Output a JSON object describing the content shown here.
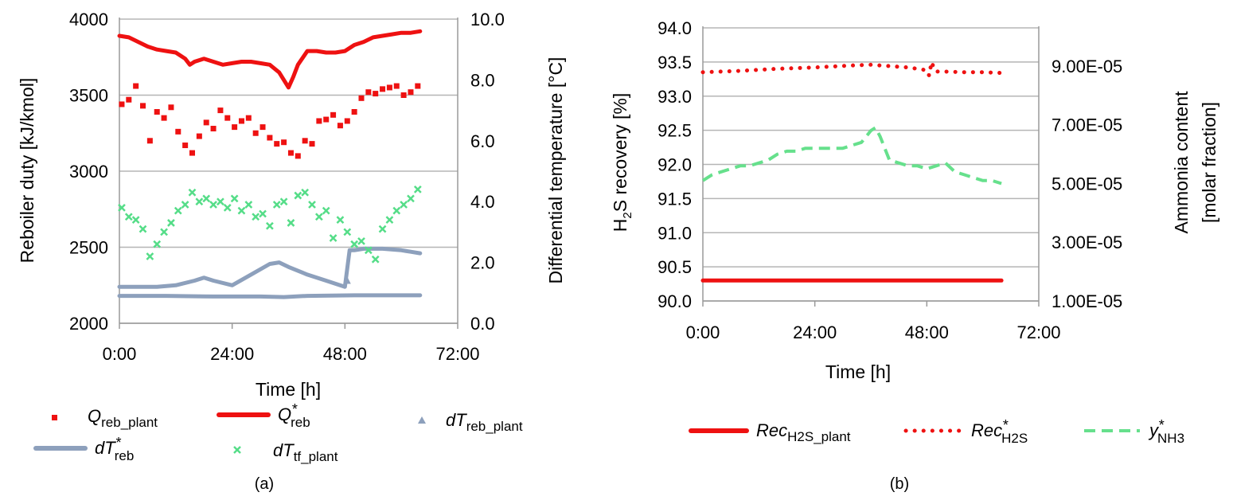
{
  "chart_data": [
    {
      "panel_label": "(a)",
      "type": "scatter",
      "xlabel": "Time [h]",
      "ylabel_left": "Reboiler duty [kJ/kmol]",
      "ylabel_right": "Differential temperature [°C]",
      "x_ticks": [
        "0:00",
        "24:00",
        "48:00",
        "72:00"
      ],
      "xlim_hours": [
        0,
        72
      ],
      "ylim_left": [
        2000,
        4000
      ],
      "y_ticks_left": [
        "2000",
        "2500",
        "3000",
        "3500",
        "4000"
      ],
      "ylim_right": [
        0,
        10
      ],
      "y_ticks_right": [
        "0.0",
        "2.0",
        "4.0",
        "6.0",
        "8.0",
        "10.0"
      ],
      "grid": "horizontal",
      "legend_position": "bottom",
      "series": [
        {
          "name_main": "Q",
          "name_sub": "reb_plant",
          "star": false,
          "axis": "left",
          "style": "square-markers",
          "color": "#ee1111",
          "x_hours": [
            0.5,
            2,
            3.5,
            5,
            6.5,
            8,
            9.5,
            11,
            12.5,
            14,
            15.5,
            17,
            18.5,
            20,
            21.5,
            23,
            24.5,
            26,
            27.5,
            29,
            30.5,
            32,
            33.5,
            35,
            36.5,
            38,
            39.5,
            41,
            42.5,
            44,
            45.5,
            47,
            48.5,
            50,
            51.5,
            53,
            54.5,
            56,
            57.5,
            59,
            60.5,
            62,
            63.5
          ],
          "values": [
            3440,
            3470,
            3560,
            3430,
            3200,
            3390,
            3350,
            3420,
            3260,
            3170,
            3120,
            3230,
            3320,
            3280,
            3400,
            3350,
            3290,
            3330,
            3350,
            3250,
            3290,
            3220,
            3180,
            3190,
            3120,
            3100,
            3200,
            3180,
            3330,
            3340,
            3370,
            3300,
            3330,
            3390,
            3480,
            3520,
            3510,
            3540,
            3550,
            3560,
            3500,
            3520,
            3560
          ]
        },
        {
          "name_main": "Q",
          "name_sub": "reb",
          "star": true,
          "axis": "left",
          "style": "thick-line",
          "color": "#ee1111",
          "x_hours": [
            0,
            2,
            4,
            6,
            8,
            10,
            12,
            14,
            15,
            16,
            18,
            20,
            22,
            24,
            26,
            28,
            30,
            32,
            34,
            35,
            36,
            37,
            38,
            40,
            42,
            44,
            46,
            48,
            50,
            52,
            54,
            56,
            58,
            60,
            62,
            64
          ],
          "values": [
            3890,
            3880,
            3850,
            3820,
            3800,
            3790,
            3780,
            3740,
            3700,
            3720,
            3740,
            3720,
            3700,
            3710,
            3720,
            3720,
            3710,
            3700,
            3650,
            3600,
            3550,
            3620,
            3700,
            3790,
            3790,
            3780,
            3780,
            3790,
            3830,
            3850,
            3880,
            3890,
            3900,
            3910,
            3910,
            3920
          ]
        },
        {
          "name_main": "dT",
          "name_sub": "reb_plant",
          "star": false,
          "axis": "right",
          "style": "triangle-markers",
          "color": "#8da0bc",
          "x_hours": [
            48.5
          ],
          "values": [
            1.4
          ]
        },
        {
          "name_main": "dT",
          "name_sub": "reb",
          "star": true,
          "axis": "right",
          "style": "thick-line",
          "color": "#8da0bc",
          "x_hours": [
            0,
            4,
            8,
            12,
            16,
            18,
            20,
            24,
            28,
            32,
            34,
            36,
            40,
            44,
            48,
            49,
            50,
            52,
            56,
            60,
            62,
            64
          ],
          "values": [
            1.2,
            1.2,
            1.2,
            1.25,
            1.4,
            1.5,
            1.4,
            1.25,
            1.6,
            1.95,
            2.0,
            1.85,
            1.6,
            1.4,
            1.2,
            2.4,
            2.4,
            2.45,
            2.45,
            2.4,
            2.35,
            2.3
          ]
        },
        {
          "name_main": "dT",
          "name_sub": "reb",
          "star": true,
          "axis": "right",
          "style": "thick-line",
          "color": "#8da0bc",
          "legend": false,
          "x_hours": [
            0,
            10,
            20,
            30,
            35,
            40,
            50,
            60,
            64
          ],
          "values": [
            0.9,
            0.9,
            0.88,
            0.88,
            0.86,
            0.9,
            0.92,
            0.92,
            0.92
          ]
        },
        {
          "name_main": "dT",
          "name_sub": "tf_plant",
          "star": false,
          "axis": "right",
          "style": "x-markers",
          "color": "#55dd88",
          "x_hours": [
            0.5,
            2,
            3.5,
            5,
            6.5,
            8,
            9.5,
            11,
            12.5,
            14,
            15.5,
            17,
            18.5,
            20,
            21.5,
            23,
            24.5,
            26,
            27.5,
            29,
            30.5,
            32,
            33.5,
            35,
            36.5,
            38,
            39.5,
            41,
            42.5,
            44,
            45.5,
            47,
            48.5,
            50,
            51.5,
            53,
            54.5,
            56,
            57.5,
            59,
            60.5,
            62,
            63.5
          ],
          "values": [
            3.8,
            3.5,
            3.4,
            3.1,
            2.2,
            2.6,
            3.0,
            3.3,
            3.7,
            3.9,
            4.3,
            4.0,
            4.1,
            3.9,
            4.0,
            3.8,
            4.1,
            3.7,
            3.9,
            3.5,
            3.6,
            3.2,
            3.9,
            4.0,
            3.3,
            4.2,
            4.3,
            3.9,
            3.5,
            3.7,
            2.8,
            3.4,
            3.0,
            2.6,
            2.7,
            2.4,
            2.1,
            3.1,
            3.4,
            3.7,
            3.9,
            4.1,
            4.4
          ]
        }
      ]
    },
    {
      "panel_label": "(b)",
      "type": "line",
      "xlabel": "Time [h]",
      "ylabel_left_pre": "H",
      "ylabel_left_sub": "2",
      "ylabel_left_post": "S recovery [%]",
      "ylabel_right_line1": "Ammonia content",
      "ylabel_right_line2": "[molar fraction]",
      "x_ticks": [
        "0:00",
        "24:00",
        "48:00",
        "72:00"
      ],
      "xlim_hours": [
        0,
        72
      ],
      "ylim_left": [
        90.0,
        94.0
      ],
      "y_ticks_left": [
        "90.0",
        "90.5",
        "91.0",
        "91.5",
        "92.0",
        "92.5",
        "93.0",
        "93.5",
        "94.0"
      ],
      "ylim_right": [
        1e-05,
        0.000103
      ],
      "y_ticks_right": [
        {
          "value": 1e-05,
          "label": "1.00E-05"
        },
        {
          "value": 3e-05,
          "label": "3.00E-05"
        },
        {
          "value": 5e-05,
          "label": "5.00E-05"
        },
        {
          "value": 7e-05,
          "label": "7.00E-05"
        },
        {
          "value": 9e-05,
          "label": "9.00E-05"
        }
      ],
      "grid": "horizontal",
      "legend_position": "bottom",
      "series": [
        {
          "name_main": "Rec",
          "name_sub": "H2S_plant",
          "star": false,
          "axis": "left",
          "style": "thick-line",
          "color": "#ee1111",
          "x_hours": [
            0,
            64
          ],
          "values": [
            90.3,
            90.3
          ]
        },
        {
          "name_main": "Rec",
          "name_sub": "H2S",
          "star": true,
          "axis": "left",
          "style": "dotted",
          "color": "#ee1111",
          "x_hours": [
            0,
            8,
            16,
            24,
            32,
            36,
            40,
            44,
            48,
            48.5,
            49,
            49.5,
            50,
            52,
            56,
            60,
            64
          ],
          "values": [
            93.35,
            93.37,
            93.4,
            93.42,
            93.45,
            93.46,
            93.44,
            93.42,
            93.38,
            93.3,
            93.5,
            93.42,
            93.36,
            93.36,
            93.35,
            93.35,
            93.34
          ]
        },
        {
          "name_main": "y",
          "name_sub": "NH3",
          "star": true,
          "axis": "right",
          "style": "dashed",
          "color": "#66e08c",
          "x_hours": [
            0,
            2,
            4,
            6,
            8,
            10,
            12,
            14,
            16,
            18,
            20,
            22,
            24,
            26,
            28,
            30,
            32,
            34,
            36,
            37,
            38,
            40,
            42,
            44,
            46,
            48,
            50,
            52,
            54,
            56,
            58,
            60,
            62,
            64
          ],
          "values": [
            5.1e-05,
            5.3e-05,
            5.4e-05,
            5.5e-05,
            5.6e-05,
            5.6e-05,
            5.7e-05,
            5.8e-05,
            6e-05,
            6.1e-05,
            6.1e-05,
            6.2e-05,
            6.2e-05,
            6.2e-05,
            6.2e-05,
            6.2e-05,
            6.3e-05,
            6.4e-05,
            6.8e-05,
            6.9e-05,
            6.6e-05,
            5.8e-05,
            5.7e-05,
            5.6e-05,
            5.6e-05,
            5.5e-05,
            5.6e-05,
            5.7e-05,
            5.4e-05,
            5.3e-05,
            5.2e-05,
            5.1e-05,
            5.1e-05,
            5e-05
          ]
        }
      ]
    }
  ]
}
